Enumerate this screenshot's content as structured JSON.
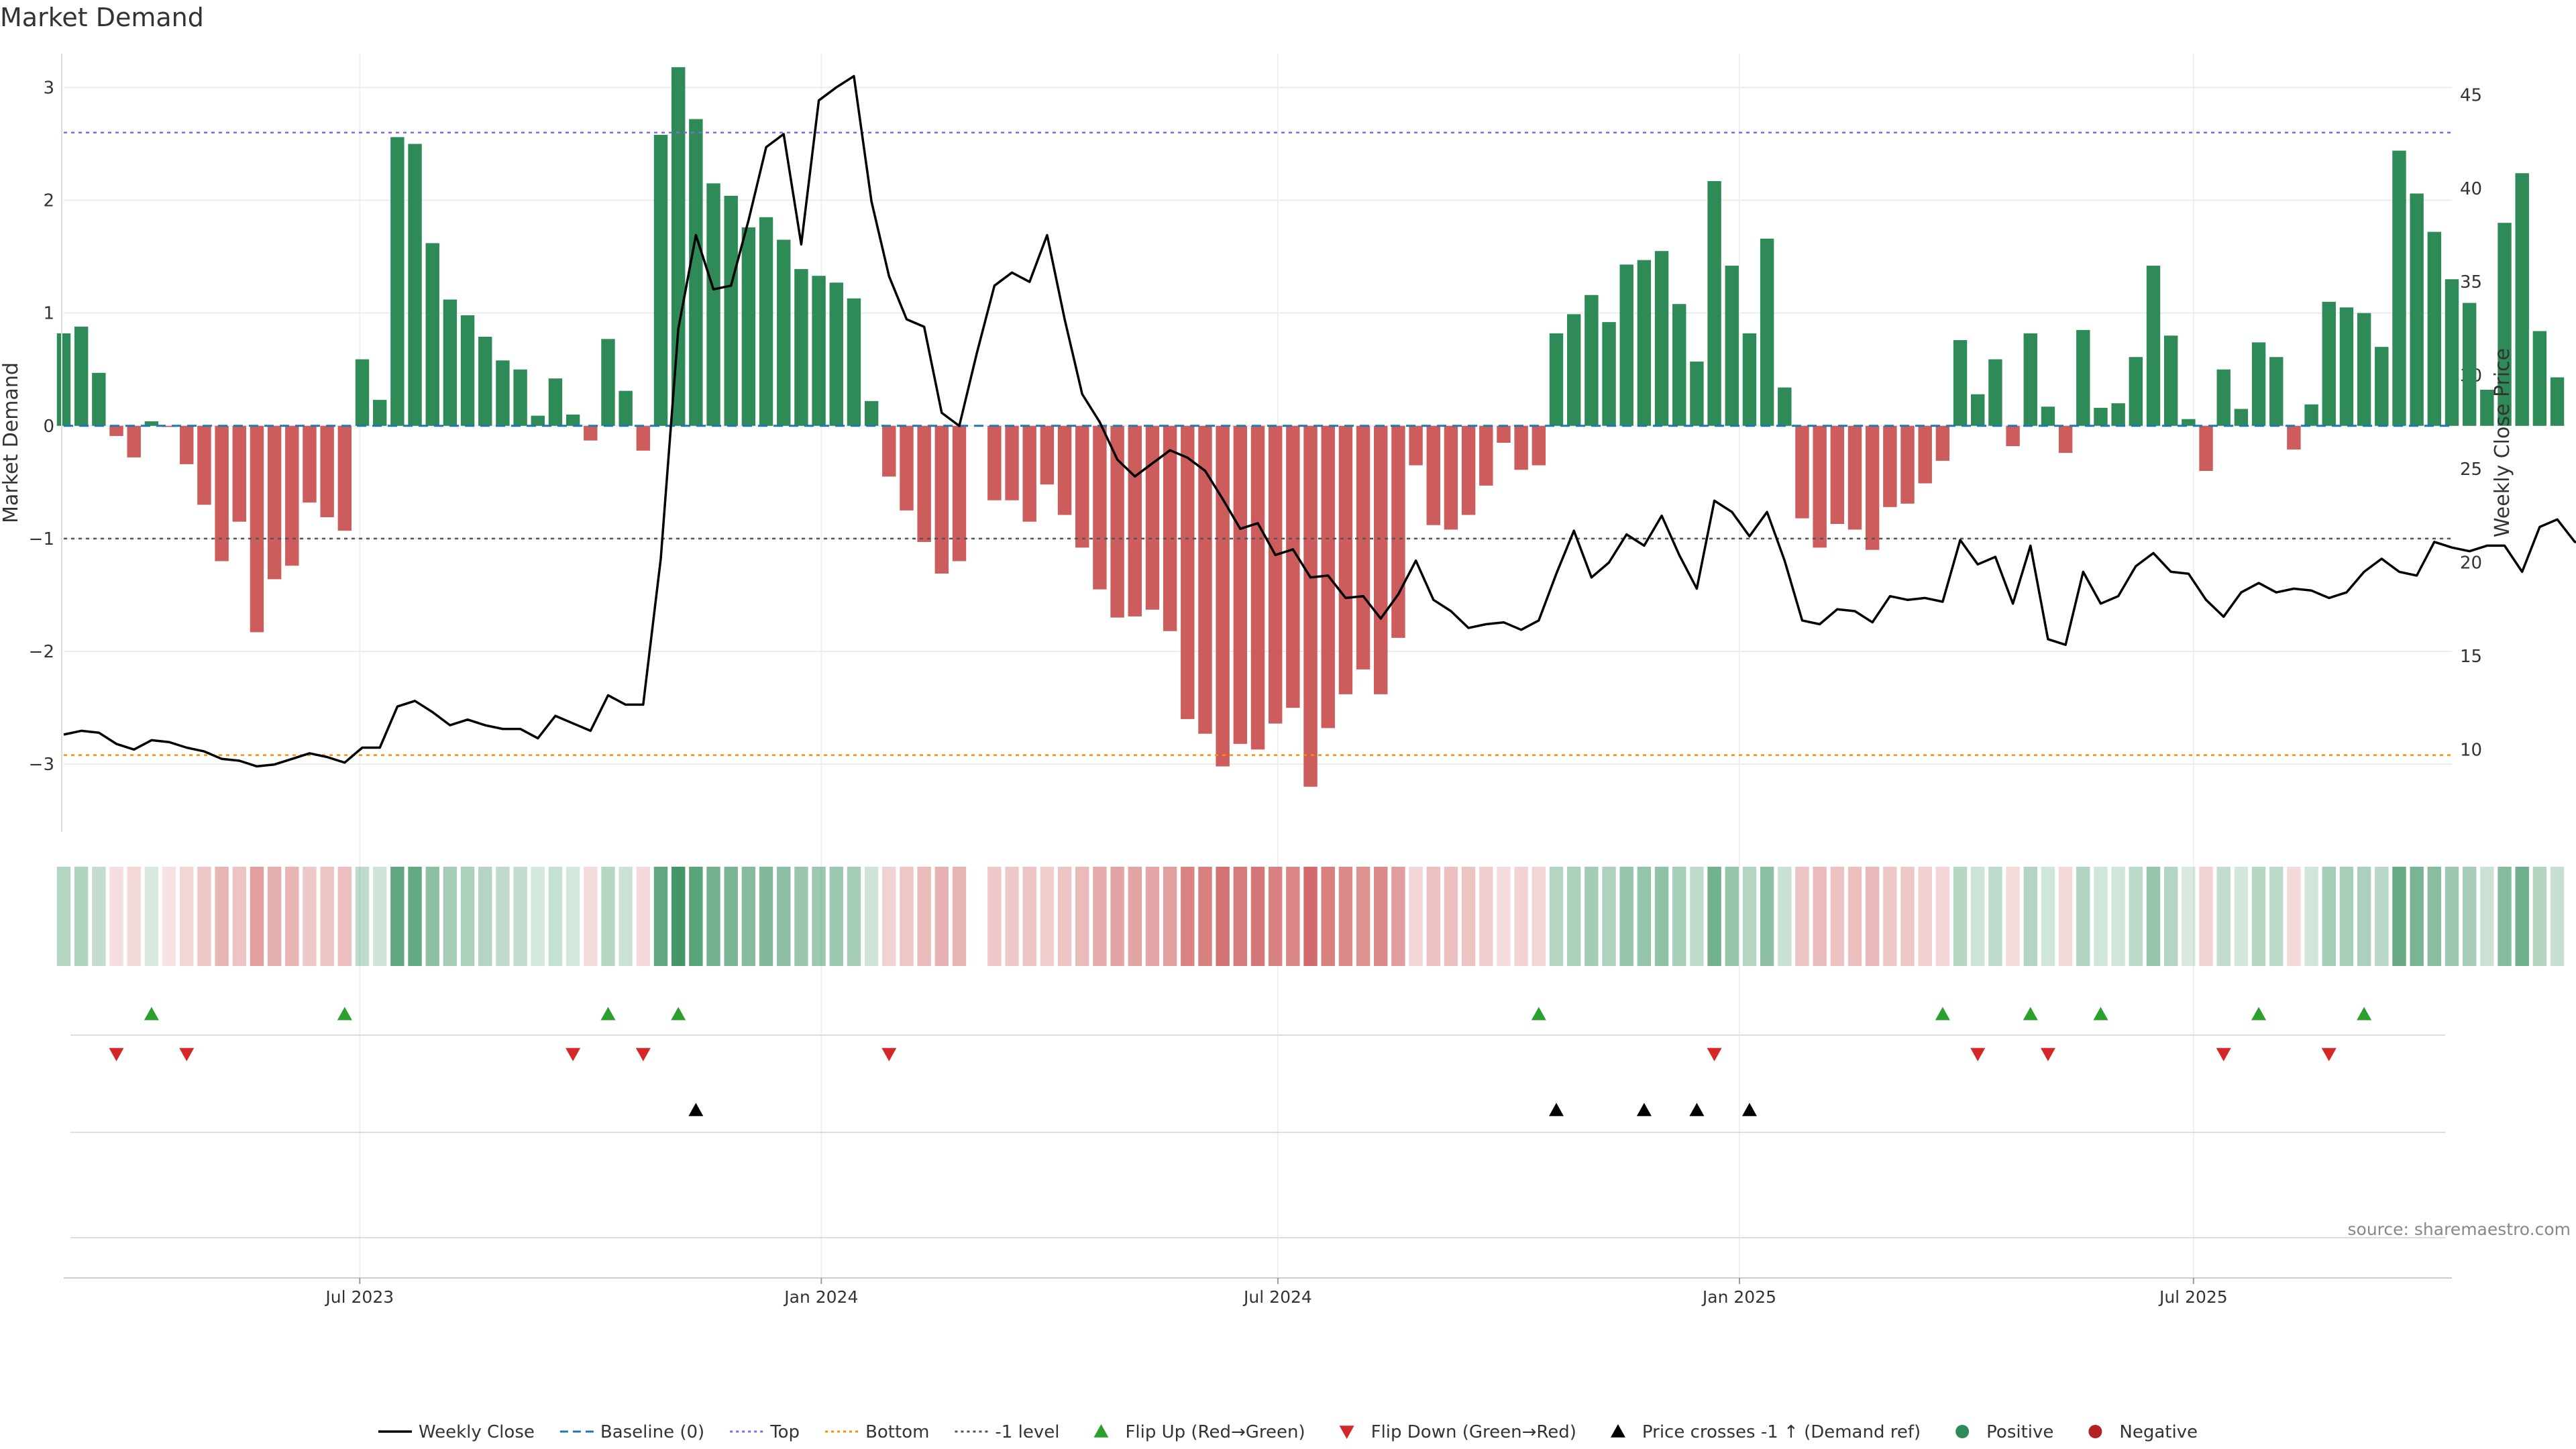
{
  "chart_data": {
    "type": "bar",
    "title": "Market Demand",
    "ylabel": "Market Demand",
    "y2label": "Weekly Close Price",
    "ylim": [
      -3.6,
      3.3
    ],
    "y2lim": [
      5.6,
      47.2
    ],
    "yticks": [
      -3,
      -2,
      -1,
      0,
      1,
      2,
      3
    ],
    "y2ticks": [
      10,
      15,
      20,
      25,
      30,
      35,
      40,
      45
    ],
    "levels": {
      "top": 2.6,
      "bottom": -2.92,
      "minus_one": -1.0,
      "baseline": 0
    },
    "x_start": "2023-03-05",
    "x_end": "2025-10-12",
    "xticks": [
      {
        "date": "2023-07-01",
        "label": "Jul 2023"
      },
      {
        "date": "2024-01-01",
        "label": "Jan 2024"
      },
      {
        "date": "2024-07-01",
        "label": "Jul 2024"
      },
      {
        "date": "2025-01-01",
        "label": "Jan 2025"
      },
      {
        "date": "2025-07-01",
        "label": "Jul 2025"
      }
    ],
    "start_week": "2023-03-05",
    "demand": [
      0.82,
      0.88,
      0.47,
      -0.09,
      -0.28,
      0.04,
      -0.01,
      -0.34,
      -0.7,
      -1.2,
      -0.85,
      -1.83,
      -1.36,
      -1.24,
      -0.68,
      -0.81,
      -0.93,
      0.59,
      0.23,
      2.56,
      2.5,
      1.62,
      1.12,
      0.98,
      0.79,
      0.58,
      0.5,
      0.09,
      0.42,
      0.1,
      -0.13,
      0.77,
      0.31,
      -0.22,
      2.58,
      3.18,
      2.72,
      2.15,
      2.04,
      1.76,
      1.85,
      1.65,
      1.39,
      1.33,
      1.27,
      1.13,
      0.22,
      -0.45,
      -0.75,
      -1.03,
      -1.31,
      -1.2,
      null,
      -0.66,
      -0.66,
      -0.85,
      -0.52,
      -0.79,
      -1.08,
      -1.45,
      -1.7,
      -1.69,
      -1.63,
      -1.82,
      -2.6,
      -2.73,
      -3.02,
      -2.82,
      -2.87,
      -2.64,
      -2.5,
      -3.2,
      -2.68,
      -2.38,
      -2.16,
      -2.38,
      -1.88,
      -0.35,
      -0.88,
      -0.92,
      -0.79,
      -0.53,
      -0.15,
      -0.39,
      -0.35,
      0.82,
      0.99,
      1.16,
      0.92,
      1.43,
      1.47,
      1.55,
      1.08,
      0.57,
      2.17,
      1.42,
      0.82,
      1.66,
      0.34,
      -0.82,
      -1.08,
      -0.87,
      -0.92,
      -1.1,
      -0.72,
      -0.69,
      -0.51,
      -0.31,
      0.76,
      0.28,
      0.59,
      -0.18,
      0.82,
      0.17,
      -0.24,
      0.85,
      0.16,
      0.2,
      0.61,
      1.42,
      0.8,
      0.06,
      -0.4,
      0.5,
      0.15,
      0.74,
      0.61,
      -0.21,
      0.19,
      1.1,
      1.05,
      1.0,
      0.7,
      2.44,
      2.06,
      1.72,
      1.3,
      1.09,
      0.32,
      1.8,
      2.24,
      0.84,
      0.43
    ],
    "close": [
      10.8,
      11.0,
      10.9,
      10.3,
      10.0,
      10.5,
      10.4,
      10.1,
      9.9,
      9.5,
      9.4,
      9.1,
      9.2,
      9.5,
      9.8,
      9.6,
      9.3,
      10.1,
      10.1,
      12.3,
      12.6,
      12.0,
      11.3,
      11.6,
      11.3,
      11.1,
      11.1,
      10.6,
      11.8,
      11.4,
      11.0,
      12.9,
      12.4,
      12.4,
      20.2,
      32.5,
      37.5,
      34.6,
      34.8,
      38.3,
      42.2,
      42.9,
      37.0,
      44.7,
      45.4,
      46.0,
      39.3,
      35.3,
      33.0,
      32.6,
      28.0,
      27.3,
      31.2,
      34.8,
      35.5,
      35.0,
      37.5,
      33.0,
      29.0,
      27.5,
      25.5,
      24.6,
      25.3,
      26.0,
      25.6,
      24.9,
      23.4,
      21.8,
      22.1,
      20.4,
      20.7,
      19.2,
      19.3,
      18.1,
      18.2,
      17.0,
      18.3,
      20.1,
      18.0,
      17.4,
      16.5,
      16.7,
      16.8,
      16.4,
      16.9,
      19.4,
      21.7,
      19.2,
      20.0,
      21.5,
      20.9,
      22.5,
      20.4,
      18.6,
      23.3,
      22.7,
      21.4,
      22.7,
      20.1,
      16.9,
      16.7,
      17.5,
      17.4,
      16.8,
      18.2,
      18.0,
      18.1,
      17.9,
      21.2,
      19.9,
      20.3,
      17.8,
      20.9,
      15.9,
      15.6,
      19.5,
      17.8,
      18.2,
      19.8,
      20.5,
      19.5,
      19.4,
      18.0,
      17.1,
      18.4,
      18.9,
      18.4,
      18.6,
      18.5,
      18.1,
      18.4,
      19.5,
      20.2,
      19.5,
      19.3,
      21.1,
      20.8,
      20.6,
      20.9,
      20.9,
      19.5,
      21.9,
      22.3,
      21.1,
      21.0
    ],
    "flip_up": [
      "2023-04-09",
      "2023-06-25",
      "2023-10-08",
      "2023-11-05",
      "2024-10-13",
      "2025-03-23",
      "2025-04-27",
      "2025-05-25",
      "2025-07-27",
      "2025-09-07"
    ],
    "flip_down": [
      "2023-03-26",
      "2023-04-23",
      "2023-09-24",
      "2023-10-22",
      "2024-01-28",
      "2024-12-22",
      "2025-04-06",
      "2025-05-04",
      "2025-07-13",
      "2025-08-24"
    ],
    "price_cross": [
      "2023-11-12",
      "2024-10-20",
      "2024-11-24",
      "2024-12-15",
      "2025-01-05"
    ],
    "colors": {
      "positive": "#2e8b57",
      "negative": "#cd5c5c",
      "close_line": "#000000",
      "baseline": "#1f77b4",
      "top": "#7b68ee",
      "bottom": "#ff8c00",
      "minus_one": "#555555",
      "flip_up": "#2ca02c",
      "flip_down": "#d62728",
      "cross": "#000000",
      "strip_pos": "#2e8b57",
      "strip_neg": "#cd5c5c"
    },
    "legend": [
      {
        "label": "Weekly Close",
        "kind": "line",
        "color": "#000000"
      },
      {
        "label": "Baseline (0)",
        "kind": "dash",
        "color": "#1f77b4"
      },
      {
        "label": "Top",
        "kind": "dot",
        "color": "#7b68ee"
      },
      {
        "label": "Bottom",
        "kind": "dot",
        "color": "#ff8c00"
      },
      {
        "label": "-1 level",
        "kind": "dot",
        "color": "#555555"
      },
      {
        "label": "Flip Up (Red→Green)",
        "kind": "tri-up",
        "color": "#2ca02c"
      },
      {
        "label": "Flip Down (Green→Red)",
        "kind": "tri-down",
        "color": "#d62728"
      },
      {
        "label": "Price crosses -1 ↑ (Demand ref)",
        "kind": "tri-up",
        "color": "#000000"
      },
      {
        "label": "Positive",
        "kind": "circle",
        "color": "#2e8b57"
      },
      {
        "label": "Negative",
        "kind": "circle",
        "color": "#b22222"
      }
    ],
    "source": "source: sharemaestro.com"
  }
}
